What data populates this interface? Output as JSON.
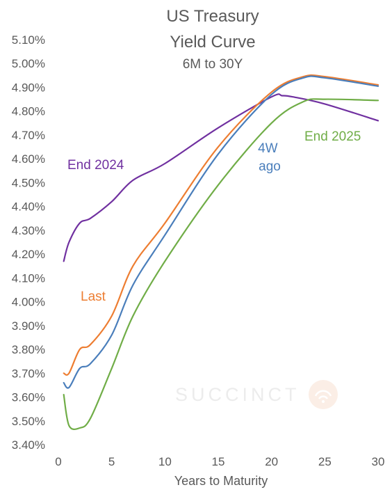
{
  "chart_data": {
    "type": "line",
    "title": "US Treasury",
    "title_line2": "Yield Curve",
    "subtitle": "6M to 30Y",
    "xlabel": "Years to Maturity",
    "ylabel": "",
    "xlim": [
      0,
      30
    ],
    "ylim": [
      3.4,
      5.1
    ],
    "x_ticks": [
      "0",
      "5",
      "10",
      "15",
      "20",
      "25",
      "30"
    ],
    "y_ticks": [
      "3.40%",
      "3.50%",
      "3.60%",
      "3.70%",
      "3.80%",
      "3.90%",
      "4.00%",
      "4.10%",
      "4.20%",
      "4.30%",
      "4.40%",
      "4.50%",
      "4.60%",
      "4.70%",
      "4.80%",
      "4.90%",
      "5.00%",
      "5.10%"
    ],
    "grid": false,
    "legend": "inline labels",
    "watermark": "SUCCINCT",
    "series": [
      {
        "name": "End 2024",
        "color": "#7030a0",
        "points": [
          [
            0.5,
            4.17
          ],
          [
            1,
            4.25
          ],
          [
            2,
            4.33
          ],
          [
            3,
            4.35
          ],
          [
            5,
            4.42
          ],
          [
            7,
            4.51
          ],
          [
            10,
            4.58
          ],
          [
            15,
            4.73
          ],
          [
            20,
            4.86
          ],
          [
            21,
            4.865
          ],
          [
            22,
            4.86
          ],
          [
            25,
            4.83
          ],
          [
            30,
            4.76
          ]
        ]
      },
      {
        "name": "Last",
        "color": "#ed7d31",
        "points": [
          [
            0.5,
            3.7
          ],
          [
            1,
            3.7
          ],
          [
            2,
            3.8
          ],
          [
            3,
            3.82
          ],
          [
            5,
            3.94
          ],
          [
            7,
            4.15
          ],
          [
            10,
            4.33
          ],
          [
            15,
            4.65
          ],
          [
            20,
            4.88
          ],
          [
            23,
            4.945
          ],
          [
            25,
            4.945
          ],
          [
            30,
            4.91
          ]
        ]
      },
      {
        "name": "4W ago",
        "color": "#4a7ebb",
        "points": [
          [
            0.5,
            3.66
          ],
          [
            1,
            3.64
          ],
          [
            2,
            3.72
          ],
          [
            3,
            3.74
          ],
          [
            5,
            3.86
          ],
          [
            7,
            4.07
          ],
          [
            10,
            4.28
          ],
          [
            15,
            4.62
          ],
          [
            20,
            4.87
          ],
          [
            23,
            4.94
          ],
          [
            25,
            4.94
          ],
          [
            30,
            4.905
          ]
        ]
      },
      {
        "name": "End 2025",
        "color": "#70ad47",
        "points": [
          [
            0.5,
            3.61
          ],
          [
            1,
            3.48
          ],
          [
            2,
            3.47
          ],
          [
            3,
            3.51
          ],
          [
            5,
            3.72
          ],
          [
            7,
            3.94
          ],
          [
            10,
            4.17
          ],
          [
            15,
            4.49
          ],
          [
            20,
            4.75
          ],
          [
            23,
            4.84
          ],
          [
            25,
            4.85
          ],
          [
            30,
            4.845
          ]
        ]
      }
    ]
  }
}
